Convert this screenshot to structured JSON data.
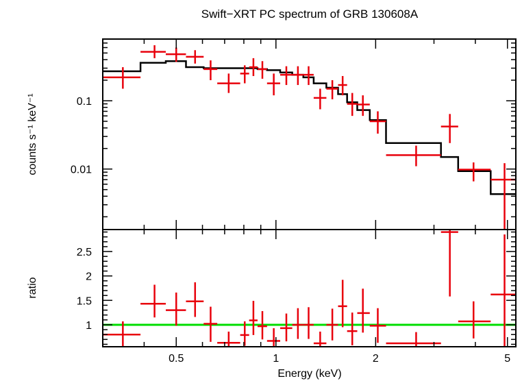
{
  "chart_data": [
    {
      "type": "scatter",
      "title": "Swift−XRT PC spectrum of GRB 130608A",
      "xlabel": "",
      "ylabel": "counts s⁻¹ keV⁻¹",
      "xscale": "log",
      "yscale": "log",
      "xlim": [
        0.3,
        5.3
      ],
      "ylim": [
        0.0013,
        0.8
      ],
      "y_ticks": [
        {
          "v": 0.01,
          "label": "0.01"
        },
        {
          "v": 0.1,
          "label": "0.1"
        }
      ],
      "series": [
        {
          "kind": "data",
          "color": "#e8000b",
          "points": [
            {
              "x": 0.345,
              "xlo": 0.3,
              "xhi": 0.39,
              "y": 0.22,
              "ylo": 0.15,
              "yhi": 0.31
            },
            {
              "x": 0.43,
              "xlo": 0.39,
              "xhi": 0.465,
              "y": 0.52,
              "ylo": 0.42,
              "yhi": 0.65
            },
            {
              "x": 0.5,
              "xlo": 0.465,
              "xhi": 0.535,
              "y": 0.48,
              "ylo": 0.37,
              "yhi": 0.6
            },
            {
              "x": 0.57,
              "xlo": 0.535,
              "xhi": 0.605,
              "y": 0.44,
              "ylo": 0.35,
              "yhi": 0.55
            },
            {
              "x": 0.635,
              "xlo": 0.605,
              "xhi": 0.665,
              "y": 0.29,
              "ylo": 0.2,
              "yhi": 0.39
            },
            {
              "x": 0.72,
              "xlo": 0.665,
              "xhi": 0.78,
              "y": 0.18,
              "ylo": 0.13,
              "yhi": 0.25
            },
            {
              "x": 0.805,
              "xlo": 0.78,
              "xhi": 0.83,
              "y": 0.25,
              "ylo": 0.18,
              "yhi": 0.33
            },
            {
              "x": 0.855,
              "xlo": 0.83,
              "xhi": 0.88,
              "y": 0.31,
              "ylo": 0.23,
              "yhi": 0.42
            },
            {
              "x": 0.91,
              "xlo": 0.88,
              "xhi": 0.94,
              "y": 0.29,
              "ylo": 0.21,
              "yhi": 0.38
            },
            {
              "x": 0.985,
              "xlo": 0.94,
              "xhi": 1.03,
              "y": 0.18,
              "ylo": 0.12,
              "yhi": 0.25
            },
            {
              "x": 1.075,
              "xlo": 1.03,
              "xhi": 1.12,
              "y": 0.24,
              "ylo": 0.17,
              "yhi": 0.32
            },
            {
              "x": 1.165,
              "xlo": 1.12,
              "xhi": 1.21,
              "y": 0.24,
              "ylo": 0.17,
              "yhi": 0.32
            },
            {
              "x": 1.255,
              "xlo": 1.21,
              "xhi": 1.3,
              "y": 0.24,
              "ylo": 0.17,
              "yhi": 0.32
            },
            {
              "x": 1.36,
              "xlo": 1.3,
              "xhi": 1.42,
              "y": 0.11,
              "ylo": 0.075,
              "yhi": 0.15
            },
            {
              "x": 1.48,
              "xlo": 1.42,
              "xhi": 1.54,
              "y": 0.15,
              "ylo": 0.105,
              "yhi": 0.2
            },
            {
              "x": 1.59,
              "xlo": 1.54,
              "xhi": 1.64,
              "y": 0.17,
              "ylo": 0.12,
              "yhi": 0.23
            },
            {
              "x": 1.7,
              "xlo": 1.64,
              "xhi": 1.76,
              "y": 0.09,
              "ylo": 0.06,
              "yhi": 0.13
            },
            {
              "x": 1.83,
              "xlo": 1.76,
              "xhi": 1.92,
              "y": 0.088,
              "ylo": 0.06,
              "yhi": 0.12
            },
            {
              "x": 2.03,
              "xlo": 1.92,
              "xhi": 2.15,
              "y": 0.05,
              "ylo": 0.033,
              "yhi": 0.07
            },
            {
              "x": 2.65,
              "xlo": 2.15,
              "xhi": 3.15,
              "y": 0.016,
              "ylo": 0.011,
              "yhi": 0.022
            },
            {
              "x": 3.35,
              "xlo": 3.15,
              "xhi": 3.55,
              "y": 0.042,
              "ylo": 0.024,
              "yhi": 0.064
            },
            {
              "x": 3.95,
              "xlo": 3.55,
              "xhi": 4.45,
              "y": 0.0098,
              "ylo": 0.0066,
              "yhi": 0.0125
            },
            {
              "x": 4.9,
              "xlo": 4.45,
              "xhi": 5.3,
              "y": 0.007,
              "ylo": 0.0013,
              "yhi": 0.0122
            }
          ]
        },
        {
          "kind": "model",
          "color": "#000000",
          "edges": [
            0.3,
            0.39,
            0.465,
            0.535,
            0.605,
            0.665,
            0.78,
            0.83,
            0.88,
            0.94,
            1.03,
            1.12,
            1.21,
            1.3,
            1.42,
            1.54,
            1.64,
            1.76,
            1.92,
            2.15,
            3.15,
            3.55,
            4.45,
            5.3
          ],
          "values": [
            0.27,
            0.36,
            0.38,
            0.31,
            0.3,
            0.3,
            0.3,
            0.3,
            0.29,
            0.28,
            0.26,
            0.24,
            0.22,
            0.18,
            0.155,
            0.125,
            0.095,
            0.073,
            0.052,
            0.024,
            0.015,
            0.0093,
            0.0043
          ]
        }
      ]
    },
    {
      "type": "scatter",
      "title": "",
      "xlabel": "Energy (keV)",
      "ylabel": "ratio",
      "xscale": "log",
      "yscale": "linear",
      "xlim": [
        0.3,
        5.3
      ],
      "ylim": [
        0.55,
        2.95
      ],
      "x_ticks": [
        {
          "v": 0.5,
          "label": "0.5"
        },
        {
          "v": 1,
          "label": "1"
        },
        {
          "v": 2,
          "label": "2"
        },
        {
          "v": 5,
          "label": "5"
        }
      ],
      "y_ticks": [
        {
          "v": 1,
          "label": "1"
        },
        {
          "v": 1.5,
          "label": "1.5"
        },
        {
          "v": 2,
          "label": "2"
        },
        {
          "v": 2.5,
          "label": "2.5"
        }
      ],
      "reference_line": {
        "y": 1,
        "color": "#00dd00"
      },
      "series": [
        {
          "kind": "data",
          "color": "#e8000b",
          "points": [
            {
              "x": 0.345,
              "xlo": 0.3,
              "xhi": 0.39,
              "y": 0.8,
              "ylo": 0.55,
              "yhi": 1.07
            },
            {
              "x": 0.43,
              "xlo": 0.39,
              "xhi": 0.465,
              "y": 1.43,
              "ylo": 1.15,
              "yhi": 1.82
            },
            {
              "x": 0.5,
              "xlo": 0.465,
              "xhi": 0.535,
              "y": 1.3,
              "ylo": 0.98,
              "yhi": 1.66
            },
            {
              "x": 0.57,
              "xlo": 0.535,
              "xhi": 0.605,
              "y": 1.48,
              "ylo": 1.16,
              "yhi": 1.87
            },
            {
              "x": 0.635,
              "xlo": 0.605,
              "xhi": 0.665,
              "y": 1.02,
              "ylo": 0.65,
              "yhi": 1.37
            },
            {
              "x": 0.72,
              "xlo": 0.665,
              "xhi": 0.78,
              "y": 0.63,
              "ylo": 0.44,
              "yhi": 0.86
            },
            {
              "x": 0.805,
              "xlo": 0.78,
              "xhi": 0.83,
              "y": 0.79,
              "ylo": 0.57,
              "yhi": 1.07
            },
            {
              "x": 0.855,
              "xlo": 0.83,
              "xhi": 0.88,
              "y": 1.09,
              "ylo": 0.79,
              "yhi": 1.49
            },
            {
              "x": 0.91,
              "xlo": 0.88,
              "xhi": 0.94,
              "y": 0.97,
              "ylo": 0.7,
              "yhi": 1.28
            },
            {
              "x": 0.985,
              "xlo": 0.94,
              "xhi": 1.03,
              "y": 0.67,
              "ylo": 0.44,
              "yhi": 0.93
            },
            {
              "x": 1.075,
              "xlo": 1.03,
              "xhi": 1.12,
              "y": 0.93,
              "ylo": 0.66,
              "yhi": 1.23
            },
            {
              "x": 1.165,
              "xlo": 1.12,
              "xhi": 1.21,
              "y": 1.0,
              "ylo": 0.71,
              "yhi": 1.34
            },
            {
              "x": 1.255,
              "xlo": 1.21,
              "xhi": 1.3,
              "y": 1.0,
              "ylo": 0.71,
              "yhi": 1.36
            },
            {
              "x": 1.36,
              "xlo": 1.3,
              "xhi": 1.42,
              "y": 0.62,
              "ylo": 0.41,
              "yhi": 0.86
            },
            {
              "x": 1.48,
              "xlo": 1.42,
              "xhi": 1.54,
              "y": 1.0,
              "ylo": 0.68,
              "yhi": 1.33
            },
            {
              "x": 1.59,
              "xlo": 1.54,
              "xhi": 1.64,
              "y": 1.38,
              "ylo": 0.95,
              "yhi": 1.92
            },
            {
              "x": 1.7,
              "xlo": 1.64,
              "xhi": 1.76,
              "y": 0.87,
              "ylo": 0.58,
              "yhi": 1.25
            },
            {
              "x": 1.83,
              "xlo": 1.76,
              "xhi": 1.92,
              "y": 1.24,
              "ylo": 0.84,
              "yhi": 1.74
            },
            {
              "x": 2.03,
              "xlo": 1.92,
              "xhi": 2.15,
              "y": 0.98,
              "ylo": 0.63,
              "yhi": 1.34
            },
            {
              "x": 2.65,
              "xlo": 2.15,
              "xhi": 3.15,
              "y": 0.62,
              "ylo": 0.43,
              "yhi": 0.85
            },
            {
              "x": 3.35,
              "xlo": 3.15,
              "xhi": 3.55,
              "y": 2.9,
              "ylo": 1.58,
              "yhi": 2.95
            },
            {
              "x": 3.95,
              "xlo": 3.55,
              "xhi": 4.45,
              "y": 1.07,
              "ylo": 0.72,
              "yhi": 1.48
            },
            {
              "x": 4.9,
              "xlo": 4.45,
              "xhi": 5.3,
              "y": 1.62,
              "ylo": 0.55,
              "yhi": 2.85
            }
          ]
        }
      ]
    }
  ]
}
